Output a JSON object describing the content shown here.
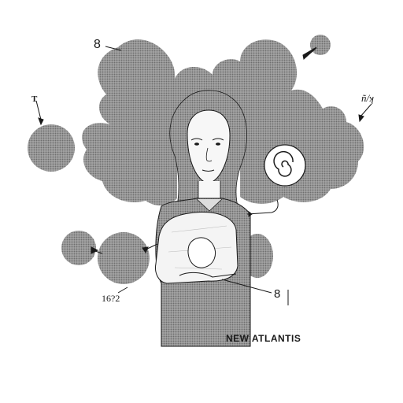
{
  "illustration": {
    "labels": {
      "top_number": "8",
      "left_letter": "T",
      "right_scrawl": "ñ/ʞ",
      "lower_left_number": "16?2",
      "lower_right_number": "8"
    },
    "caption": "NEW ATLANTIS"
  },
  "colors": {
    "background": "#ffffff",
    "cloud_fill": "#8e8e8e",
    "line": "#1a1a1a",
    "skin": "#f7f7f7"
  }
}
